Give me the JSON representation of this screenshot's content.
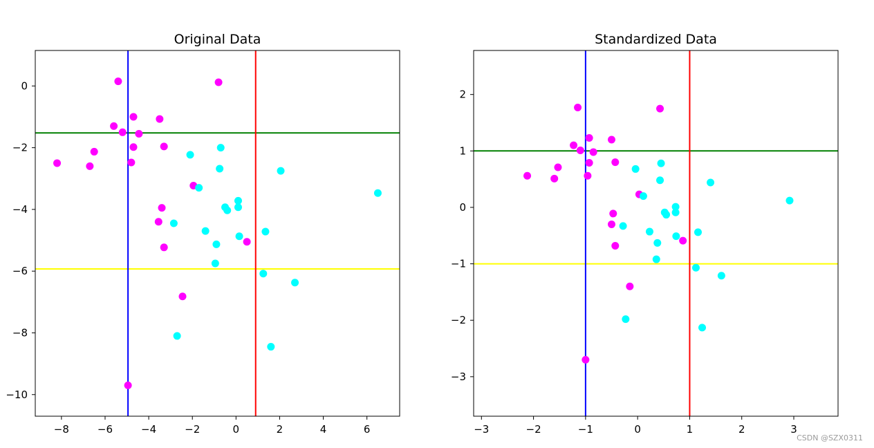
{
  "watermark": "CSDN @SZX0311",
  "chart_data": [
    {
      "type": "scatter",
      "title": "Original Data",
      "xlim": [
        -9.2,
        7.5
      ],
      "ylim": [
        -10.7,
        1.15
      ],
      "xticks": [
        -8,
        -6,
        -4,
        -2,
        0,
        2,
        4,
        6
      ],
      "yticks": [
        0,
        -2,
        -4,
        -6,
        -8,
        -10
      ],
      "hlines": [
        {
          "y": -1.52,
          "color": "#008000"
        },
        {
          "y": -5.93,
          "color": "#ffff00"
        }
      ],
      "vlines": [
        {
          "x": -4.95,
          "color": "#0000ff"
        },
        {
          "x": 0.9,
          "color": "#ff0000"
        }
      ],
      "series": [
        {
          "name": "class-magenta",
          "color": "#ff00ff",
          "points": [
            [
              -5.4,
              0.15
            ],
            [
              -0.8,
              0.12
            ],
            [
              -4.7,
              -1.0
            ],
            [
              -3.5,
              -1.07
            ],
            [
              -5.6,
              -1.3
            ],
            [
              -5.2,
              -1.5
            ],
            [
              -4.45,
              -1.55
            ],
            [
              -4.7,
              -1.98
            ],
            [
              -3.3,
              -1.96
            ],
            [
              -6.5,
              -2.13
            ],
            [
              -8.2,
              -2.5
            ],
            [
              -4.8,
              -2.48
            ],
            [
              -6.7,
              -2.6
            ],
            [
              -1.95,
              -3.23
            ],
            [
              -3.4,
              -3.95
            ],
            [
              -3.55,
              -4.4
            ],
            [
              -3.3,
              -5.23
            ],
            [
              0.5,
              -5.05
            ],
            [
              -2.45,
              -6.82
            ],
            [
              -4.95,
              -9.7
            ]
          ]
        },
        {
          "name": "class-cyan",
          "color": "#00ffff",
          "points": [
            [
              -0.7,
              -2.0
            ],
            [
              -2.1,
              -2.23
            ],
            [
              -0.75,
              -2.68
            ],
            [
              2.05,
              -2.75
            ],
            [
              -1.7,
              -3.3
            ],
            [
              6.5,
              -3.47
            ],
            [
              0.1,
              -3.72
            ],
            [
              -0.5,
              -3.93
            ],
            [
              0.1,
              -3.93
            ],
            [
              -0.4,
              -4.03
            ],
            [
              -2.85,
              -4.45
            ],
            [
              -1.4,
              -4.7
            ],
            [
              1.35,
              -4.72
            ],
            [
              0.15,
              -4.87
            ],
            [
              -0.9,
              -5.13
            ],
            [
              -0.95,
              -5.75
            ],
            [
              1.25,
              -6.08
            ],
            [
              2.7,
              -6.37
            ],
            [
              -2.7,
              -8.1
            ],
            [
              1.6,
              -8.45
            ]
          ]
        }
      ]
    },
    {
      "type": "scatter",
      "title": "Standardized Data",
      "xlim": [
        -3.15,
        3.85
      ],
      "ylim": [
        -3.7,
        2.78
      ],
      "xticks": [
        -3,
        -2,
        -1,
        0,
        1,
        2,
        3
      ],
      "yticks": [
        2,
        1,
        0,
        -1,
        -2,
        -3
      ],
      "hlines": [
        {
          "y": 1.0,
          "color": "#008000"
        },
        {
          "y": -1.0,
          "color": "#ffff00"
        }
      ],
      "vlines": [
        {
          "x": -1.0,
          "color": "#0000ff"
        },
        {
          "x": 1.0,
          "color": "#ff0000"
        }
      ],
      "series": [
        {
          "name": "class-magenta",
          "color": "#ff00ff",
          "points": [
            [
              -1.15,
              1.77
            ],
            [
              0.43,
              1.75
            ],
            [
              -0.93,
              1.23
            ],
            [
              -0.5,
              1.2
            ],
            [
              -1.23,
              1.1
            ],
            [
              -1.1,
              1.01
            ],
            [
              -0.85,
              0.98
            ],
            [
              -0.93,
              0.79
            ],
            [
              -0.43,
              0.8
            ],
            [
              -1.53,
              0.71
            ],
            [
              -2.12,
              0.56
            ],
            [
              -0.96,
              0.56
            ],
            [
              -1.6,
              0.51
            ],
            [
              0.03,
              0.23
            ],
            [
              -0.47,
              -0.11
            ],
            [
              -0.5,
              -0.3
            ],
            [
              -0.43,
              -0.68
            ],
            [
              0.87,
              -0.59
            ],
            [
              -0.15,
              -1.4
            ],
            [
              -1.0,
              -2.7
            ]
          ]
        },
        {
          "name": "class-cyan",
          "color": "#00ffff",
          "points": [
            [
              0.45,
              0.78
            ],
            [
              -0.04,
              0.68
            ],
            [
              0.43,
              0.48
            ],
            [
              1.4,
              0.44
            ],
            [
              0.11,
              0.2
            ],
            [
              2.92,
              0.12
            ],
            [
              0.73,
              0.01
            ],
            [
              0.52,
              -0.09
            ],
            [
              0.73,
              -0.09
            ],
            [
              0.55,
              -0.13
            ],
            [
              -0.28,
              -0.33
            ],
            [
              0.23,
              -0.43
            ],
            [
              1.16,
              -0.44
            ],
            [
              0.74,
              -0.51
            ],
            [
              0.38,
              -0.63
            ],
            [
              0.36,
              -0.92
            ],
            [
              1.12,
              -1.07
            ],
            [
              1.61,
              -1.21
            ],
            [
              -0.23,
              -1.98
            ],
            [
              1.24,
              -2.13
            ]
          ]
        }
      ]
    }
  ]
}
